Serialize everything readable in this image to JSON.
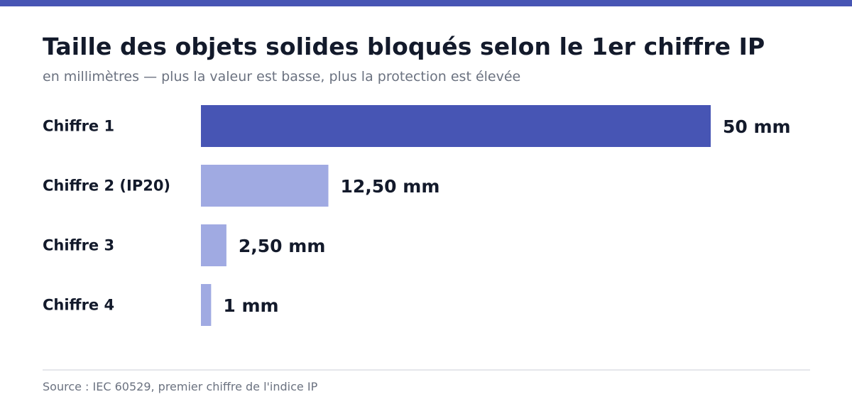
{
  "title": "Taille des objets solides bloqués selon le 1er chiffre IP",
  "subtitle": "en millimètres — plus la valeur est basse, plus la protection est élevée",
  "source": "Source : IEC 60529, premier chiffre de l'indice IP",
  "colors": {
    "accent": "#4755b4",
    "muted_bar": "#a0aae2",
    "text": "#131a2b",
    "subtle_text": "#6b7280"
  },
  "chart_data": {
    "type": "bar",
    "orientation": "horizontal",
    "categories": [
      "Chiffre 1",
      "Chiffre 2 (IP20)",
      "Chiffre 3",
      "Chiffre 4"
    ],
    "values": [
      50,
      12.5,
      2.5,
      1
    ],
    "value_labels": [
      "50 mm",
      "12,50 mm",
      "2,50 mm",
      "1 mm"
    ],
    "highlighted_category": "Chiffre 1",
    "unit": "mm",
    "xlim": [
      0,
      50
    ],
    "grid": false,
    "legend": "none"
  }
}
